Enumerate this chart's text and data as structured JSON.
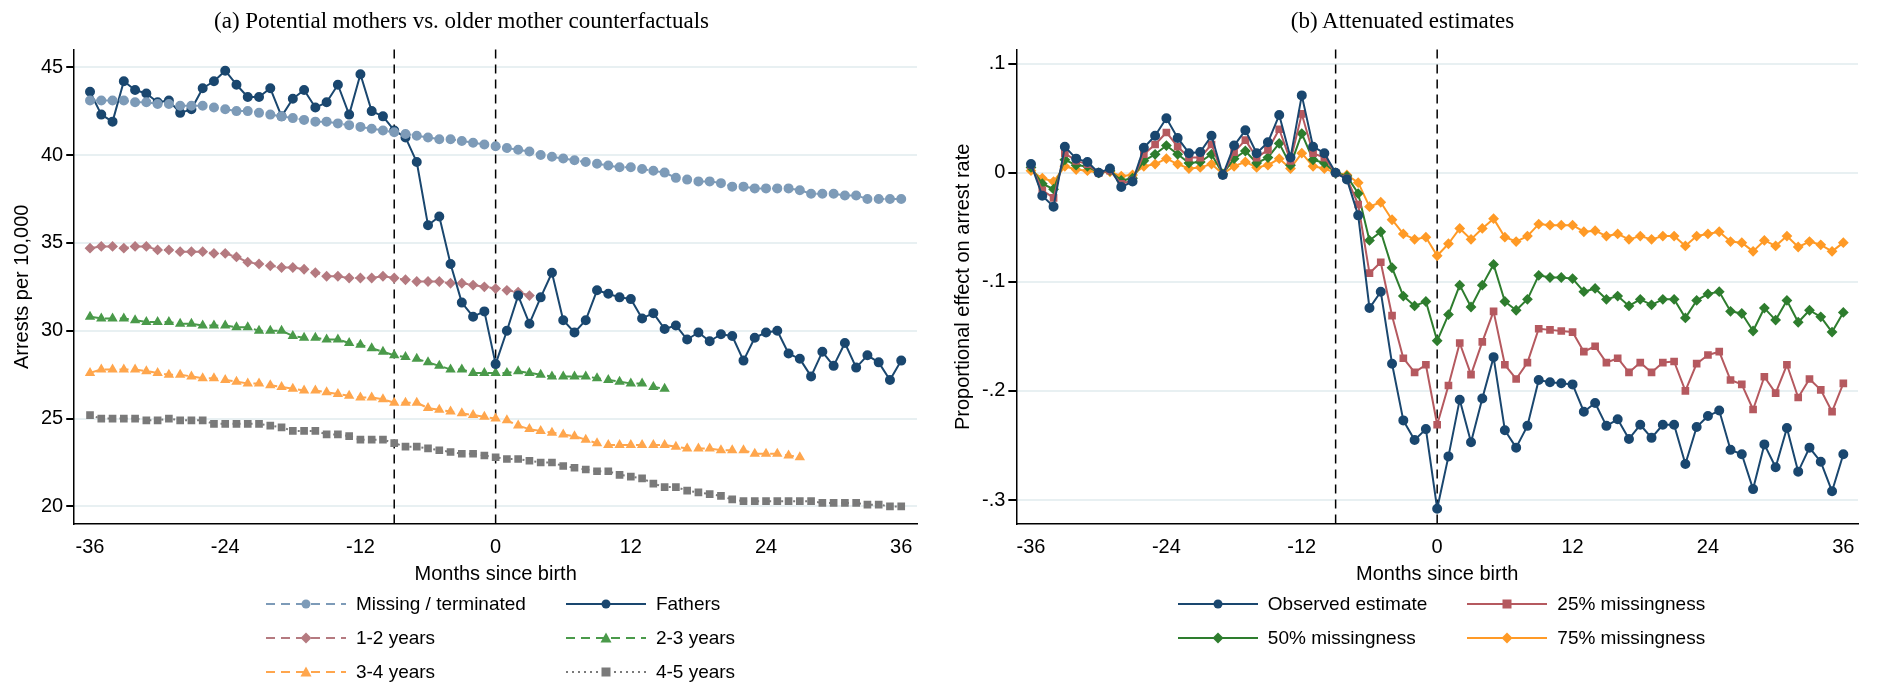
{
  "chart_data": [
    {
      "type": "line",
      "title": "(a) Potential mothers vs. older mother counterfactuals",
      "xlabel": "Months since birth",
      "ylabel": "Arrests per 10,000",
      "x": [
        -36,
        -35,
        -34,
        -33,
        -32,
        -31,
        -30,
        -29,
        -28,
        -27,
        -26,
        -25,
        -24,
        -23,
        -22,
        -21,
        -20,
        -19,
        -18,
        -17,
        -16,
        -15,
        -14,
        -13,
        -12,
        -11,
        -10,
        -9,
        -8,
        -7,
        -6,
        -5,
        -4,
        -3,
        -2,
        -1,
        0,
        1,
        2,
        3,
        4,
        5,
        6,
        7,
        8,
        9,
        10,
        11,
        12,
        13,
        14,
        15,
        16,
        17,
        18,
        19,
        20,
        21,
        22,
        23,
        24,
        25,
        26,
        27,
        28,
        29,
        30,
        31,
        32,
        33,
        34,
        35,
        36
      ],
      "xlim": [
        -37.4,
        37.4
      ],
      "xticks": [
        -36,
        -24,
        -12,
        0,
        12,
        24,
        36
      ],
      "ylim": [
        19,
        46
      ],
      "yticks": [
        20,
        25,
        30,
        35,
        40,
        45
      ],
      "grid": "y",
      "legend": "bottom",
      "ref_lines": [
        {
          "axis": "x",
          "value": -9,
          "color": "#000000",
          "line_style": "dashed"
        },
        {
          "axis": "x",
          "value": 0,
          "color": "#000000",
          "line_style": "dashed"
        }
      ],
      "series": [
        {
          "name": "Missing / terminated",
          "color": "#7d9bb8",
          "marker": "circle",
          "line_style": "dashed",
          "values": [
            43.1,
            43.1,
            43.1,
            43.1,
            43.0,
            43.0,
            42.9,
            42.9,
            42.8,
            42.8,
            42.8,
            42.7,
            42.6,
            42.5,
            42.5,
            42.4,
            42.3,
            42.2,
            42.1,
            42.0,
            41.9,
            41.9,
            41.8,
            41.7,
            41.6,
            41.5,
            41.4,
            41.3,
            41.2,
            41.1,
            41.0,
            40.9,
            40.9,
            40.8,
            40.7,
            40.6,
            40.5,
            40.4,
            40.3,
            40.2,
            40.0,
            39.9,
            39.8,
            39.7,
            39.6,
            39.5,
            39.4,
            39.3,
            39.3,
            39.2,
            39.1,
            39.0,
            38.7,
            38.6,
            38.5,
            38.5,
            38.4,
            38.2,
            38.2,
            38.1,
            38.1,
            38.1,
            38.1,
            38.0,
            37.8,
            37.8,
            37.8,
            37.7,
            37.7,
            37.5,
            37.5,
            37.5,
            37.5
          ]
        },
        {
          "name": "Fathers",
          "color": "#1a476f",
          "marker": "circle",
          "line_style": "solid",
          "values": [
            43.6,
            42.3,
            41.9,
            44.2,
            43.7,
            43.5,
            43.0,
            43.1,
            42.4,
            42.6,
            43.8,
            44.2,
            44.8,
            44.0,
            43.3,
            43.3,
            43.8,
            42.2,
            43.2,
            43.7,
            42.7,
            43.0,
            44.0,
            42.3,
            44.6,
            42.5,
            42.2,
            41.4,
            41.0,
            39.6,
            36.0,
            36.5,
            33.8,
            31.6,
            30.8,
            31.1,
            28.1,
            30.0,
            32.0,
            30.4,
            31.9,
            33.3,
            30.6,
            29.9,
            30.6,
            32.3,
            32.1,
            31.9,
            31.8,
            30.7,
            31.0,
            30.1,
            30.3,
            29.5,
            29.9,
            29.4,
            29.8,
            29.7,
            28.3,
            29.6,
            29.9,
            30.0,
            28.7,
            28.4,
            27.4,
            28.8,
            28.0,
            29.3,
            27.9,
            28.6,
            28.2,
            27.2,
            28.3
          ]
        },
        {
          "name": "1-2 years",
          "color": "#b57a80",
          "marker": "diamond",
          "line_style": "dashed",
          "values": [
            34.7,
            34.8,
            34.8,
            34.7,
            34.8,
            34.8,
            34.6,
            34.6,
            34.5,
            34.5,
            34.5,
            34.4,
            34.4,
            34.2,
            33.9,
            33.8,
            33.7,
            33.6,
            33.6,
            33.5,
            33.3,
            33.1,
            33.1,
            33.0,
            33.0,
            33.0,
            33.1,
            33.0,
            32.9,
            32.8,
            32.8,
            32.8,
            32.7,
            32.7,
            32.6,
            32.5,
            32.4,
            32.3,
            32.2,
            32.0,
            null,
            null,
            null,
            null,
            null,
            null,
            null,
            null,
            null,
            null,
            null,
            null,
            null,
            null,
            null,
            null,
            null,
            null,
            null,
            null,
            null,
            null,
            null,
            null,
            null,
            null,
            null,
            null,
            null,
            null,
            null,
            null,
            null
          ]
        },
        {
          "name": "2-3 years",
          "color": "#4a9a4a",
          "marker": "triangle",
          "line_style": "dashed",
          "values": [
            30.8,
            30.7,
            30.7,
            30.7,
            30.6,
            30.5,
            30.5,
            30.5,
            30.4,
            30.4,
            30.3,
            30.3,
            30.3,
            30.2,
            30.2,
            30.0,
            30.0,
            30.0,
            29.7,
            29.6,
            29.6,
            29.5,
            29.5,
            29.3,
            29.2,
            29.0,
            28.8,
            28.6,
            28.5,
            28.4,
            28.2,
            28.0,
            27.8,
            27.8,
            27.6,
            27.6,
            27.6,
            27.6,
            27.7,
            27.6,
            27.5,
            27.4,
            27.4,
            27.4,
            27.4,
            27.3,
            27.2,
            27.1,
            27.0,
            27.0,
            26.8,
            26.7,
            null,
            null,
            null,
            null,
            null,
            null,
            null,
            null,
            null,
            null,
            null,
            null,
            null,
            null,
            null,
            null,
            null,
            null,
            null,
            null,
            null
          ]
        },
        {
          "name": "3-4 years",
          "color": "#ffa64d",
          "marker": "triangle",
          "line_style": "dashed",
          "values": [
            27.6,
            27.8,
            27.8,
            27.8,
            27.8,
            27.7,
            27.6,
            27.5,
            27.5,
            27.4,
            27.3,
            27.3,
            27.2,
            27.1,
            27.0,
            27.0,
            26.9,
            26.8,
            26.7,
            26.6,
            26.6,
            26.5,
            26.4,
            26.3,
            26.2,
            26.2,
            26.1,
            25.9,
            25.9,
            25.9,
            25.6,
            25.5,
            25.4,
            25.3,
            25.2,
            25.1,
            25.0,
            24.9,
            24.6,
            24.4,
            24.3,
            24.2,
            24.1,
            24.0,
            23.8,
            23.6,
            23.5,
            23.5,
            23.5,
            23.5,
            23.5,
            23.5,
            23.4,
            23.3,
            23.3,
            23.3,
            23.2,
            23.2,
            23.2,
            23.0,
            23.0,
            23.0,
            22.9,
            22.8,
            null,
            null,
            null,
            null,
            null,
            null,
            null,
            null,
            null
          ]
        },
        {
          "name": "4-5 years",
          "color": "#7a7a7a",
          "marker": "square",
          "line_style": "dotted",
          "values": [
            25.2,
            25.0,
            25.0,
            25.0,
            25.0,
            24.9,
            24.9,
            25.0,
            24.9,
            24.9,
            24.9,
            24.7,
            24.7,
            24.7,
            24.7,
            24.7,
            24.6,
            24.5,
            24.3,
            24.3,
            24.3,
            24.1,
            24.1,
            24.0,
            23.8,
            23.8,
            23.8,
            23.6,
            23.4,
            23.4,
            23.3,
            23.2,
            23.1,
            23.0,
            23.0,
            22.9,
            22.8,
            22.7,
            22.7,
            22.6,
            22.5,
            22.5,
            22.3,
            22.2,
            22.1,
            22.0,
            22.0,
            21.8,
            21.7,
            21.6,
            21.3,
            21.1,
            21.1,
            20.9,
            20.8,
            20.7,
            20.6,
            20.4,
            20.3,
            20.3,
            20.3,
            20.3,
            20.3,
            20.3,
            20.3,
            20.2,
            20.2,
            20.2,
            20.2,
            20.1,
            20.1,
            20.0,
            20.0
          ]
        }
      ]
    },
    {
      "type": "line",
      "title": "(b) Attenuated estimates",
      "xlabel": "Months since birth",
      "ylabel": "Proportional effect on arrest rate",
      "x": [
        -36,
        -35,
        -34,
        -33,
        -32,
        -31,
        -30,
        -29,
        -28,
        -27,
        -26,
        -25,
        -24,
        -23,
        -22,
        -21,
        -20,
        -19,
        -18,
        -17,
        -16,
        -15,
        -14,
        -13,
        -12,
        -11,
        -10,
        -9,
        -8,
        -7,
        -6,
        -5,
        -4,
        -3,
        -2,
        -1,
        0,
        1,
        2,
        3,
        4,
        5,
        6,
        7,
        8,
        9,
        10,
        11,
        12,
        13,
        14,
        15,
        16,
        17,
        18,
        19,
        20,
        21,
        22,
        23,
        24,
        25,
        26,
        27,
        28,
        29,
        30,
        31,
        32,
        33,
        34,
        35,
        36
      ],
      "xlim": [
        -37.3,
        37.3
      ],
      "xticks": [
        -36,
        -24,
        -12,
        0,
        12,
        24,
        36
      ],
      "ylim": [
        -0.322,
        0.113
      ],
      "yticks": [
        {
          "value": -0.3,
          "label": "-.3"
        },
        {
          "value": -0.2,
          "label": "-.2"
        },
        {
          "value": -0.1,
          "label": "-.1"
        },
        0,
        {
          "value": 0.1,
          "label": ".1"
        }
      ],
      "grid": "y",
      "legend": "bottom",
      "ref_lines": [
        {
          "axis": "x",
          "value": -9,
          "color": "#000000",
          "line_style": "dashed"
        },
        {
          "axis": "x",
          "value": 0,
          "color": "#000000",
          "line_style": "dashed"
        }
      ],
      "series": [
        {
          "name": "Observed estimate",
          "color": "#1a476f",
          "marker": "circle",
          "line_style": "solid",
          "values": [
            0.008,
            -0.021,
            -0.031,
            0.024,
            0.013,
            0.01,
            0,
            0.004,
            -0.013,
            -0.008,
            0.023,
            0.034,
            0.05,
            0.032,
            0.018,
            0.019,
            0.034,
            -0.002,
            0.025,
            0.039,
            0.018,
            0.028,
            0.053,
            0.014,
            0.071,
            0.024,
            0.018,
            0,
            -0.006,
            -0.039,
            -0.124,
            -0.109,
            -0.175,
            -0.227,
            -0.245,
            -0.235,
            -0.308,
            -0.26,
            -0.208,
            -0.247,
            -0.207,
            -0.169,
            -0.236,
            -0.252,
            -0.232,
            -0.19,
            -0.192,
            -0.193,
            -0.194,
            -0.219,
            -0.211,
            -0.232,
            -0.226,
            -0.244,
            -0.231,
            -0.243,
            -0.231,
            -0.231,
            -0.267,
            -0.233,
            -0.223,
            -0.218,
            -0.254,
            -0.258,
            -0.29,
            -0.249,
            -0.27,
            -0.234,
            -0.274,
            -0.252,
            -0.265,
            -0.292,
            -0.258
          ]
        },
        {
          "name": "25% missingness",
          "color": "#b5595f",
          "marker": "square",
          "line_style": "solid",
          "values": [
            0.007,
            -0.016,
            -0.023,
            0.018,
            0.011,
            0.008,
            0,
            0.002,
            -0.01,
            -0.007,
            0.017,
            0.026,
            0.037,
            0.024,
            0.014,
            0.014,
            0.026,
            -0.002,
            0.019,
            0.03,
            0.014,
            0.021,
            0.04,
            0.011,
            0.054,
            0.018,
            0.014,
            0,
            -0.005,
            -0.029,
            -0.092,
            -0.082,
            -0.131,
            -0.17,
            -0.183,
            -0.176,
            -0.231,
            -0.195,
            -0.156,
            -0.185,
            -0.155,
            -0.127,
            -0.176,
            -0.189,
            -0.174,
            -0.143,
            -0.144,
            -0.145,
            -0.146,
            -0.164,
            -0.159,
            -0.174,
            -0.17,
            -0.183,
            -0.174,
            -0.183,
            -0.174,
            -0.173,
            -0.2,
            -0.175,
            -0.167,
            -0.164,
            -0.19,
            -0.194,
            -0.217,
            -0.187,
            -0.202,
            -0.176,
            -0.206,
            -0.189,
            -0.199,
            -0.219,
            -0.193
          ]
        },
        {
          "name": "50% missingness",
          "color": "#2e7d2e",
          "marker": "diamond",
          "line_style": "solid",
          "values": [
            0.005,
            -0.01,
            -0.015,
            0.012,
            0.007,
            0.006,
            0,
            0.002,
            -0.007,
            -0.005,
            0.011,
            0.017,
            0.025,
            0.017,
            0.009,
            0.01,
            0.017,
            -0.001,
            0.013,
            0.02,
            0.009,
            0.014,
            0.027,
            0.007,
            0.036,
            0.012,
            0.009,
            0,
            -0.003,
            -0.019,
            -0.062,
            -0.054,
            -0.087,
            -0.113,
            -0.122,
            -0.118,
            -0.154,
            -0.13,
            -0.103,
            -0.123,
            -0.103,
            -0.084,
            -0.118,
            -0.126,
            -0.116,
            -0.094,
            -0.096,
            -0.096,
            -0.097,
            -0.109,
            -0.106,
            -0.116,
            -0.113,
            -0.122,
            -0.116,
            -0.121,
            -0.116,
            -0.116,
            -0.133,
            -0.117,
            -0.111,
            -0.109,
            -0.127,
            -0.129,
            -0.145,
            -0.124,
            -0.135,
            -0.117,
            -0.137,
            -0.126,
            -0.132,
            -0.146,
            -0.128
          ]
        },
        {
          "name": "75% missingness",
          "color": "#ff9a26",
          "marker": "diamond",
          "line_style": "solid",
          "values": [
            0.002,
            -0.005,
            -0.008,
            0.006,
            0.003,
            0.002,
            0,
            0.001,
            -0.003,
            -0.002,
            0.006,
            0.008,
            0.013,
            0.008,
            0.004,
            0.005,
            0.008,
            -0.001,
            0.006,
            0.01,
            0.005,
            0.007,
            0.013,
            0.004,
            0.018,
            0.006,
            0.004,
            0,
            -0.002,
            -0.009,
            -0.031,
            -0.027,
            -0.043,
            -0.056,
            -0.061,
            -0.059,
            -0.076,
            -0.065,
            -0.051,
            -0.061,
            -0.051,
            -0.042,
            -0.059,
            -0.063,
            -0.058,
            -0.047,
            -0.048,
            -0.048,
            -0.048,
            -0.054,
            -0.053,
            -0.058,
            -0.056,
            -0.061,
            -0.058,
            -0.061,
            -0.058,
            -0.058,
            -0.067,
            -0.058,
            -0.056,
            -0.054,
            -0.063,
            -0.064,
            -0.072,
            -0.062,
            -0.067,
            -0.058,
            -0.068,
            -0.063,
            -0.066,
            -0.072,
            -0.064
          ]
        }
      ]
    }
  ]
}
